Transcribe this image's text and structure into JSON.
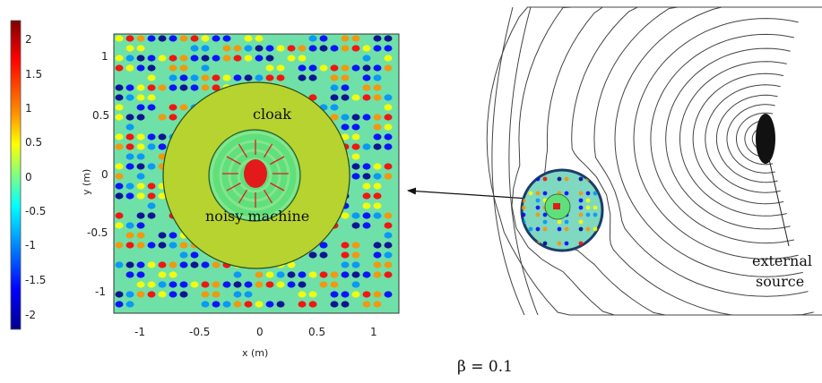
{
  "colorbar": {
    "ticks": [
      "2",
      "1.5",
      "1",
      "0.5",
      "0",
      "-0.5",
      "-1",
      "-1.5",
      "-2"
    ],
    "colors": [
      "#7f0000",
      "#ff0000",
      "#ff8000",
      "#ffff00",
      "#80ff80",
      "#00ffff",
      "#0080ff",
      "#0000ff",
      "#00008f"
    ]
  },
  "field_plot": {
    "xlabel": "x (m)",
    "ylabel": "y (m)",
    "xticks": [
      "-1",
      "-0.5",
      "0",
      "0.5",
      "1"
    ],
    "yticks": [
      "1",
      "0.5",
      "0",
      "-0.5",
      "-1"
    ],
    "xlim": [
      -1.25,
      1.25
    ],
    "ylim": [
      -1.25,
      1.25
    ],
    "cloak_label": "cloak",
    "machine_label": "noisy machine",
    "cloak_color": "#b7d32f",
    "machine_color": "#5fe07a",
    "source_color": "#e31a1c"
  },
  "field_lines": {
    "source_label_line1": "external",
    "source_label_line2": "source",
    "beta_label": "β = 0.1"
  }
}
